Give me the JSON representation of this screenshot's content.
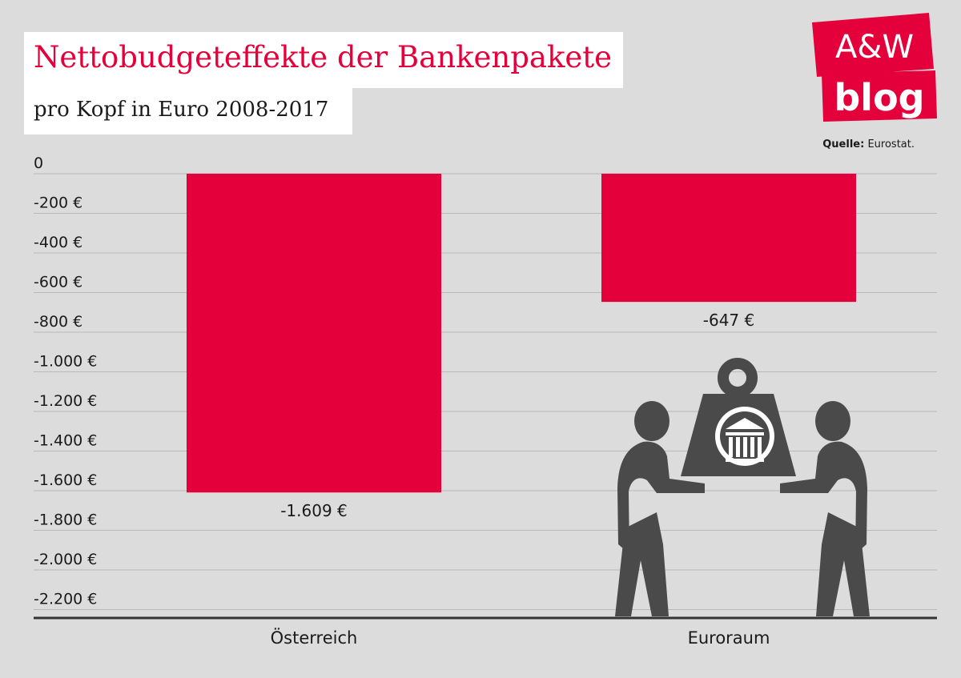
{
  "header": {
    "title": "Nettobudgeteffekte der Bankenpakete",
    "subtitle": "pro Kopf in Euro 2008-2017"
  },
  "logo": {
    "line1": "A&W",
    "line2": "blog",
    "color": "#e4003a"
  },
  "source": {
    "label": "Quelle:",
    "text": "Eurostat."
  },
  "colors": {
    "bar": "#e4003a",
    "grid": "#b9b9b9",
    "axis": "#333333",
    "illustration": "#4a4a4a"
  },
  "chart_data": {
    "type": "bar",
    "categories": [
      "Österreich",
      "Euroraum"
    ],
    "values": [
      -1609,
      -647
    ],
    "value_labels": [
      "-1.609 €",
      "-647 €"
    ],
    "yticks": [
      0,
      -200,
      -400,
      -600,
      -800,
      -1000,
      -1200,
      -1400,
      -1600,
      -1800,
      -2000,
      -2200
    ],
    "ytick_labels": [
      "0",
      "-200 €",
      "-400 €",
      "-600 €",
      "-800 €",
      "-1.000 €",
      "-1.200 €",
      "-1.400 €",
      "-1.600 €",
      "-1.800 €",
      "-2.000 €",
      "-2.200 €"
    ],
    "ylim": [
      -2250,
      0
    ],
    "grid": true,
    "legend": "none",
    "illustration_icon": "two-people-carrying-bank-weight-icon"
  }
}
